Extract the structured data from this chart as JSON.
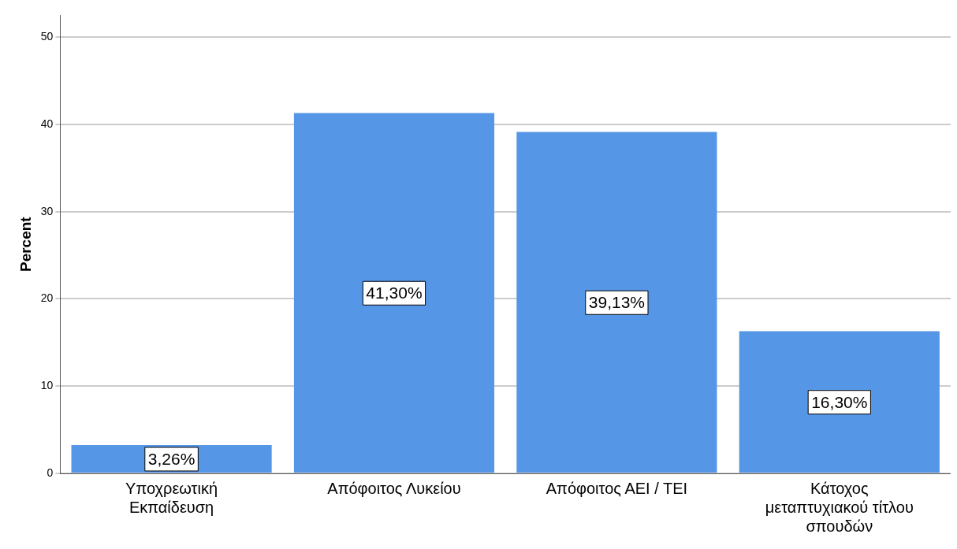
{
  "chart_data": {
    "type": "bar",
    "ylabel": "Percent",
    "categories": [
      "Υποχρεωτική Εκπαίδευση",
      "Απόφοιτος Λυκείου",
      "Απόφοιτος ΑΕΙ / ΤΕΙ",
      "Κάτοχος μεταπτυχιακού τίτλου σπουδών"
    ],
    "values": [
      3.26,
      41.3,
      39.13,
      16.3
    ],
    "value_labels": [
      "3,26%",
      "41,30%",
      "39,13%",
      "16,30%"
    ],
    "color": "#5596e6",
    "ylim": [
      0,
      52.5
    ],
    "yticks": [
      0,
      10,
      20,
      30,
      40,
      50
    ],
    "grid": "y",
    "legend": false
  }
}
